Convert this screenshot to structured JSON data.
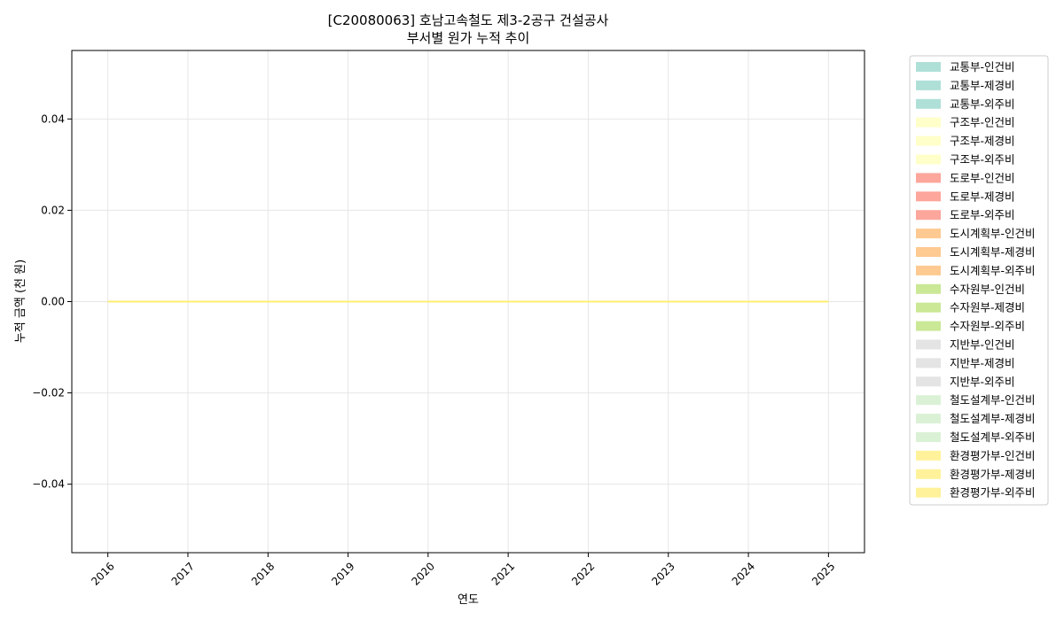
{
  "chart_data": {
    "type": "area",
    "stacked": true,
    "title_line1": "[C20080063] 호남고속철도 제3-2공구 건설공사",
    "title_line2": "부서별 원가 누적 추이",
    "xlabel": "연도",
    "ylabel": "누적 금액 (천 원)",
    "x": [
      2016,
      2017,
      2018,
      2019,
      2020,
      2021,
      2022,
      2023,
      2024,
      2025
    ],
    "xlim": [
      2015.55,
      2025.45
    ],
    "ylim": [
      -0.055,
      0.055
    ],
    "yticks": [
      -0.04,
      -0.02,
      0.0,
      0.02,
      0.04
    ],
    "grid": true,
    "legend_position": "outside-right",
    "series": [
      {
        "name": "교통부-인건비",
        "color": "#8dd3c7",
        "values": [
          0,
          0,
          0,
          0,
          0,
          0,
          0,
          0,
          0,
          0
        ]
      },
      {
        "name": "교통부-제경비",
        "color": "#8dd3c7",
        "values": [
          0,
          0,
          0,
          0,
          0,
          0,
          0,
          0,
          0,
          0
        ]
      },
      {
        "name": "교통부-외주비",
        "color": "#8dd3c7",
        "values": [
          0,
          0,
          0,
          0,
          0,
          0,
          0,
          0,
          0,
          0
        ]
      },
      {
        "name": "구조부-인건비",
        "color": "#ffffb3",
        "values": [
          0,
          0,
          0,
          0,
          0,
          0,
          0,
          0,
          0,
          0
        ]
      },
      {
        "name": "구조부-제경비",
        "color": "#ffffb3",
        "values": [
          0,
          0,
          0,
          0,
          0,
          0,
          0,
          0,
          0,
          0
        ]
      },
      {
        "name": "구조부-외주비",
        "color": "#ffffb3",
        "values": [
          0,
          0,
          0,
          0,
          0,
          0,
          0,
          0,
          0,
          0
        ]
      },
      {
        "name": "도로부-인건비",
        "color": "#fb8072",
        "values": [
          0,
          0,
          0,
          0,
          0,
          0,
          0,
          0,
          0,
          0
        ]
      },
      {
        "name": "도로부-제경비",
        "color": "#fb8072",
        "values": [
          0,
          0,
          0,
          0,
          0,
          0,
          0,
          0,
          0,
          0
        ]
      },
      {
        "name": "도로부-외주비",
        "color": "#fb8072",
        "values": [
          0,
          0,
          0,
          0,
          0,
          0,
          0,
          0,
          0,
          0
        ]
      },
      {
        "name": "도시계획부-인건비",
        "color": "#fdb462",
        "values": [
          0,
          0,
          0,
          0,
          0,
          0,
          0,
          0,
          0,
          0
        ]
      },
      {
        "name": "도시계획부-제경비",
        "color": "#fdb462",
        "values": [
          0,
          0,
          0,
          0,
          0,
          0,
          0,
          0,
          0,
          0
        ]
      },
      {
        "name": "도시계획부-외주비",
        "color": "#fdb462",
        "values": [
          0,
          0,
          0,
          0,
          0,
          0,
          0,
          0,
          0,
          0
        ]
      },
      {
        "name": "수자원부-인건비",
        "color": "#b3de69",
        "values": [
          0,
          0,
          0,
          0,
          0,
          0,
          0,
          0,
          0,
          0
        ]
      },
      {
        "name": "수자원부-제경비",
        "color": "#b3de69",
        "values": [
          0,
          0,
          0,
          0,
          0,
          0,
          0,
          0,
          0,
          0
        ]
      },
      {
        "name": "수자원부-외주비",
        "color": "#b3de69",
        "values": [
          0,
          0,
          0,
          0,
          0,
          0,
          0,
          0,
          0,
          0
        ]
      },
      {
        "name": "지반부-인건비",
        "color": "#d9d9d9",
        "values": [
          0,
          0,
          0,
          0,
          0,
          0,
          0,
          0,
          0,
          0
        ]
      },
      {
        "name": "지반부-제경비",
        "color": "#d9d9d9",
        "values": [
          0,
          0,
          0,
          0,
          0,
          0,
          0,
          0,
          0,
          0
        ]
      },
      {
        "name": "지반부-외주비",
        "color": "#d9d9d9",
        "values": [
          0,
          0,
          0,
          0,
          0,
          0,
          0,
          0,
          0,
          0
        ]
      },
      {
        "name": "철도설계부-인건비",
        "color": "#ccebc5",
        "values": [
          0,
          0,
          0,
          0,
          0,
          0,
          0,
          0,
          0,
          0
        ]
      },
      {
        "name": "철도설계부-제경비",
        "color": "#ccebc5",
        "values": [
          0,
          0,
          0,
          0,
          0,
          0,
          0,
          0,
          0,
          0
        ]
      },
      {
        "name": "철도설계부-외주비",
        "color": "#ccebc5",
        "values": [
          0,
          0,
          0,
          0,
          0,
          0,
          0,
          0,
          0,
          0
        ]
      },
      {
        "name": "환경평가부-인건비",
        "color": "#ffed6f",
        "values": [
          0,
          0,
          0,
          0,
          0,
          0,
          0,
          0,
          0,
          0
        ]
      },
      {
        "name": "환경평가부-제경비",
        "color": "#ffed6f",
        "values": [
          0,
          0,
          0,
          0,
          0,
          0,
          0,
          0,
          0,
          0
        ]
      },
      {
        "name": "환경평가부-외주비",
        "color": "#ffed6f",
        "values": [
          0,
          0,
          0,
          0,
          0,
          0,
          0,
          0,
          0,
          0
        ]
      }
    ]
  }
}
